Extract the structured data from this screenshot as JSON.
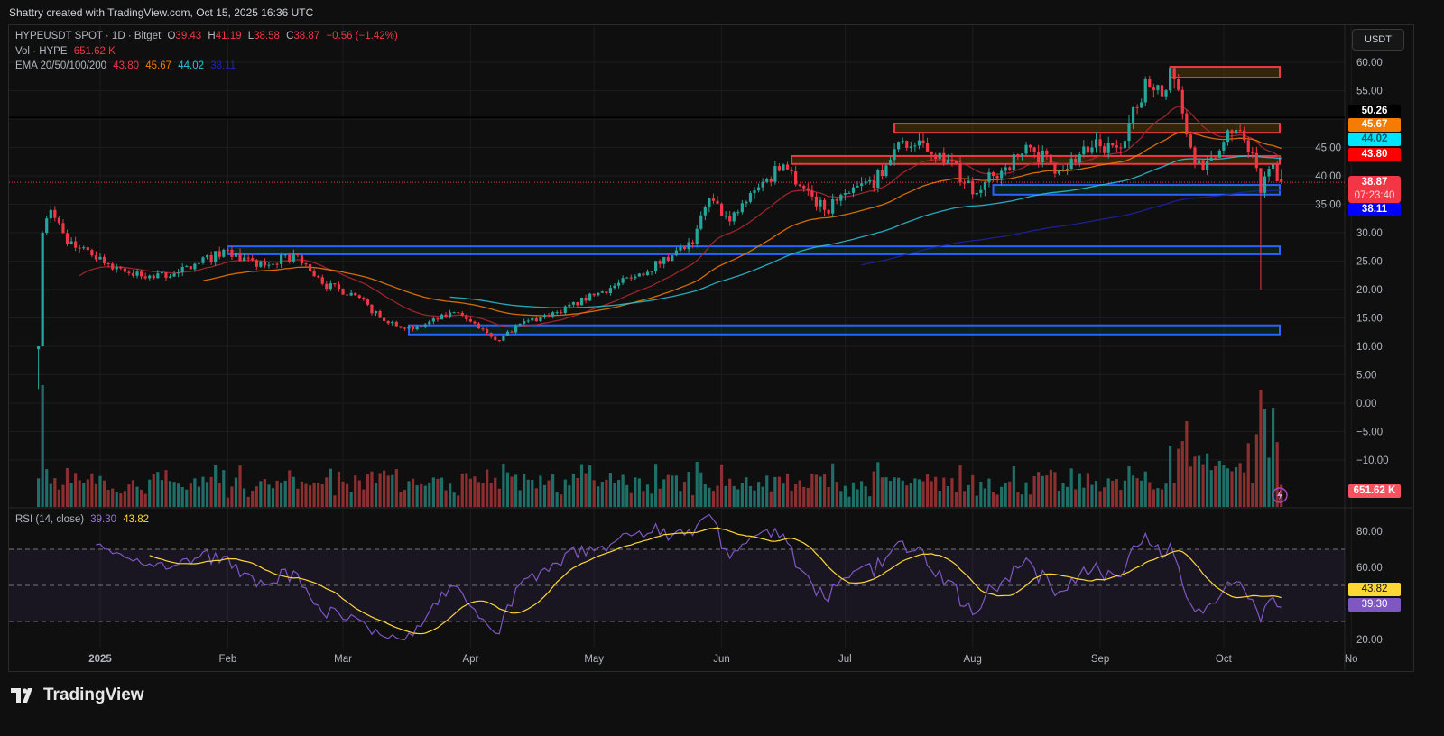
{
  "credit": "Shattry created with TradingView.com, Oct 15, 2025 16:36 UTC",
  "legend": {
    "symbol": "HYPEUSDT SPOT · 1D · Bitget",
    "o_label": "O",
    "o": "39.43",
    "h_label": "H",
    "h": "41.19",
    "l_label": "L",
    "l": "38.58",
    "c_label": "C",
    "c": "38.87",
    "change": "−0.56 (−1.42%)",
    "vol_label": "Vol · HYPE",
    "vol": "651.62 K",
    "ema_label": "EMA 20/50/100/200",
    "ema20": "43.80",
    "ema50": "45.67",
    "ema100": "44.02",
    "ema200": "38.11",
    "rsi_label": "RSI (14, close)",
    "rsi": "39.30",
    "rsi_ma": "43.82"
  },
  "currency_button": "USDT",
  "tags": {
    "hline": "50.26",
    "ema50": "45.67",
    "ema100": "44.02",
    "ema20": "43.80",
    "price": "38.87",
    "countdown": "07:23:40",
    "ema200": "38.11",
    "volume": "651.62 K",
    "rsi_ma": "43.82",
    "rsi": "39.30"
  },
  "colors": {
    "up": "#26a69a",
    "down": "#f23645",
    "ema20": "#b22833",
    "ema50": "#f57c00",
    "ema100": "#26c6da",
    "ema200": "#1e22aa",
    "rsi": "#7e57c2",
    "rsi_ma": "#fdd835",
    "box_red": "#f23645",
    "box_blue": "#2962ff"
  },
  "price_axis_ticks": [
    "60.00",
    "55.00",
    "45.00",
    "40.00",
    "35.00",
    "30.00",
    "25.00",
    "20.00",
    "15.00",
    "10.00",
    "5.00",
    "0.00",
    "−5.00",
    "−10.00"
  ],
  "rsi_axis_ticks": [
    "80.00",
    "60.00",
    "20.00"
  ],
  "time_axis": [
    "2025",
    "Feb",
    "Mar",
    "Apr",
    "May",
    "Jun",
    "Jul",
    "Aug",
    "Sep",
    "Oct",
    "No"
  ],
  "logo": "TradingView",
  "chart_data": {
    "type": "candlestick",
    "interval": "1D",
    "ylim": [
      -10,
      60
    ],
    "close_path": [
      [
        "2024-12-17",
        10
      ],
      [
        "2024-12-18",
        30
      ],
      [
        "2024-12-20",
        34
      ],
      [
        "2024-12-24",
        28
      ],
      [
        "2024-12-30",
        26
      ],
      [
        "2025-01-05",
        24
      ],
      [
        "2025-01-12",
        22
      ],
      [
        "2025-01-20",
        23
      ],
      [
        "2025-02-01",
        27
      ],
      [
        "2025-02-08",
        24
      ],
      [
        "2025-02-18",
        26
      ],
      [
        "2025-02-24",
        21
      ],
      [
        "2025-03-04",
        19
      ],
      [
        "2025-03-10",
        15
      ],
      [
        "2025-03-18",
        13
      ],
      [
        "2025-03-28",
        16
      ],
      [
        "2025-04-04",
        13
      ],
      [
        "2025-04-08",
        11
      ],
      [
        "2025-04-13",
        14
      ],
      [
        "2025-04-22",
        16
      ],
      [
        "2025-05-01",
        19
      ],
      [
        "2025-05-10",
        22
      ],
      [
        "2025-05-20",
        26
      ],
      [
        "2025-05-25",
        28
      ],
      [
        "2025-05-29",
        36
      ],
      [
        "2025-06-03",
        32
      ],
      [
        "2025-06-10",
        38
      ],
      [
        "2025-06-16",
        42
      ],
      [
        "2025-06-26",
        34
      ],
      [
        "2025-07-02",
        37
      ],
      [
        "2025-07-10",
        40
      ],
      [
        "2025-07-14",
        46
      ],
      [
        "2025-07-24",
        44
      ],
      [
        "2025-08-02",
        37
      ],
      [
        "2025-08-06",
        40
      ],
      [
        "2025-08-15",
        45
      ],
      [
        "2025-08-22",
        41
      ],
      [
        "2025-08-30",
        45
      ],
      [
        "2025-09-05",
        45
      ],
      [
        "2025-09-10",
        52
      ],
      [
        "2025-09-12",
        57
      ],
      [
        "2025-09-16",
        54
      ],
      [
        "2025-09-18",
        59
      ],
      [
        "2025-09-21",
        51
      ],
      [
        "2025-09-23",
        45
      ],
      [
        "2025-09-26",
        41
      ],
      [
        "2025-10-01",
        46
      ],
      [
        "2025-10-05",
        48
      ],
      [
        "2025-10-08",
        44
      ],
      [
        "2025-10-10",
        37
      ],
      [
        "2025-10-13",
        42
      ],
      [
        "2025-10-15",
        38.87
      ]
    ],
    "last": {
      "open": 39.43,
      "high": 41.19,
      "low": 38.58,
      "close": 38.87
    },
    "oct10_wick_low": 20,
    "zones": [
      {
        "color": "red",
        "from": "2025-09-18",
        "top": 59.2,
        "bottom": 57.3
      },
      {
        "color": "red",
        "from": "2025-07-13",
        "top": 49.2,
        "bottom": 47.6
      },
      {
        "color": "red",
        "from": "2025-06-18",
        "top": 43.5,
        "bottom": 42.1
      },
      {
        "color": "blue",
        "from": "2025-08-06",
        "top": 38.4,
        "bottom": 36.7
      },
      {
        "color": "blue",
        "from": "2025-02-01",
        "top": 27.6,
        "bottom": 26.2
      },
      {
        "color": "blue",
        "from": "2025-03-17",
        "top": 13.7,
        "bottom": 12.1
      }
    ],
    "horizontal_line": 50.26,
    "rsi_levels": [
      70,
      50,
      30
    ]
  }
}
